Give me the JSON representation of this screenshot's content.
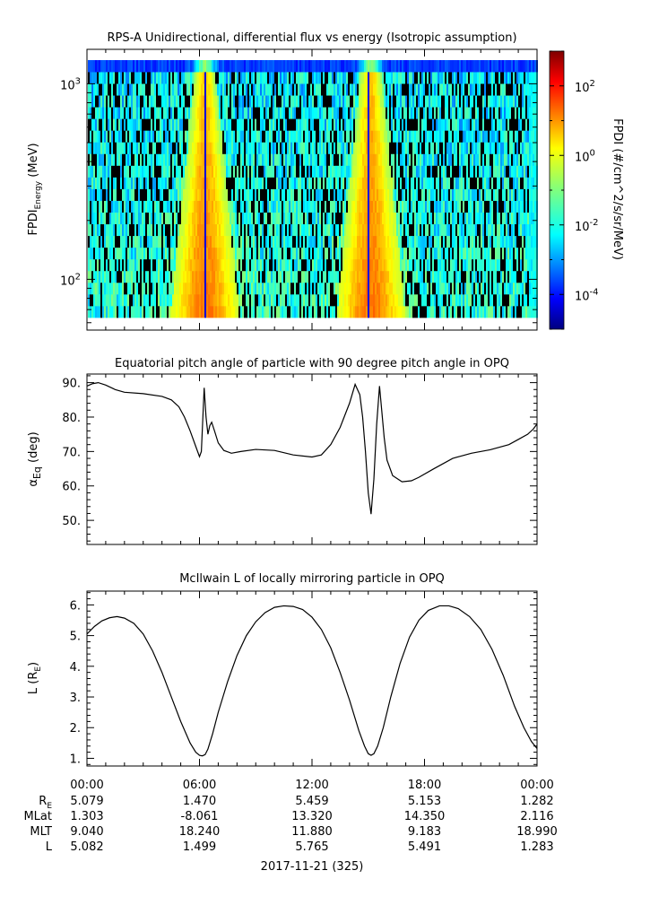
{
  "chart_data": [
    {
      "type": "heatmap",
      "title": "RPS-A Unidirectional, differential flux vs energy (Isotropic assumption)",
      "ylabel": "FPDI",
      "ylabel_sub": "Energy",
      "ylabel_unit": "(MeV)",
      "yscale": "log",
      "ylim": [
        55,
        1500
      ],
      "ytick_values": [
        100,
        1000
      ],
      "ytick_labels": [
        {
          "base": "10",
          "exp": "2"
        },
        {
          "base": "10",
          "exp": "3"
        }
      ],
      "energy_bins": 22,
      "xlim_hours": [
        0,
        24
      ],
      "peak_times_hours": [
        6.25,
        15.1
      ],
      "colorbar": {
        "label": "FPDI (#/cm^2/s/sr/MeV)",
        "scale": "log",
        "range": [
          1e-05,
          1000.0
        ],
        "tick_values": [
          100,
          1,
          0.01,
          0.0001
        ],
        "tick_labels": [
          {
            "base": "10",
            "exp": "2"
          },
          {
            "base": "10",
            "exp": "0"
          },
          {
            "base": "10",
            "exp": "-2"
          },
          {
            "base": "10",
            "exp": "-4"
          }
        ],
        "colors": [
          "#00007f",
          "#0000ff",
          "#007fff",
          "#00ffff",
          "#7fff7f",
          "#ffff00",
          "#ff7f00",
          "#ff0000",
          "#7f0000"
        ]
      }
    },
    {
      "type": "line",
      "title": "Equatorial pitch angle of particle with 90 degree pitch angle in OPQ",
      "ylabel": "α",
      "ylabel_sub": "Eq",
      "ylabel_unit": "(deg)",
      "ylim": [
        43,
        92.5
      ],
      "ytick_values": [
        50,
        60,
        70,
        80,
        90
      ],
      "ytick_labels": [
        "50.",
        "60.",
        "70.",
        "80.",
        "90."
      ],
      "xlim_hours": [
        0,
        24
      ],
      "x": [
        0,
        0.3,
        0.6,
        1.0,
        1.5,
        2.0,
        3.0,
        4.0,
        4.5,
        4.9,
        5.2,
        5.5,
        5.8,
        6.0,
        6.1,
        6.25,
        6.35,
        6.45,
        6.55,
        6.65,
        6.8,
        7.0,
        7.3,
        7.7,
        8.2,
        9.0,
        10.0,
        11.0,
        12.0,
        12.5,
        13.0,
        13.5,
        14.0,
        14.3,
        14.55,
        14.7,
        14.85,
        15.0,
        15.15,
        15.3,
        15.45,
        15.6,
        15.75,
        15.85,
        16.0,
        16.3,
        16.8,
        17.3,
        17.7,
        18.5,
        19.5,
        20.5,
        21.5,
        22.5,
        23.0,
        23.5,
        23.8,
        24.0
      ],
      "y": [
        89.0,
        89.7,
        90.0,
        89.3,
        88.0,
        87.2,
        86.8,
        86.0,
        85.0,
        83.0,
        80.0,
        76.0,
        71.5,
        68.5,
        70.0,
        88.5,
        80.0,
        75.0,
        77.5,
        78.5,
        76.0,
        72.5,
        70.3,
        69.5,
        70.0,
        70.6,
        70.3,
        69.0,
        68.4,
        69.0,
        72.0,
        77.0,
        84.0,
        89.5,
        86.5,
        80.0,
        70.0,
        58.0,
        51.8,
        62.0,
        78.0,
        89.0,
        80.0,
        74.0,
        67.5,
        63.0,
        61.2,
        61.5,
        62.5,
        65.0,
        68.0,
        69.5,
        70.5,
        72.0,
        73.5,
        75.0,
        76.5,
        78.0
      ]
    },
    {
      "type": "line",
      "title": "McIlwain L of locally mirroring particle in OPQ",
      "ylabel": "L",
      "ylabel_unit": "(R",
      "ylabel_unit_sub": "E",
      "ylabel_unit_close": ")",
      "ylim": [
        0.75,
        6.45
      ],
      "ytick_values": [
        1,
        2,
        3,
        4,
        5,
        6
      ],
      "ytick_labels": [
        "1.",
        "2.",
        "3.",
        "4.",
        "5.",
        "6."
      ],
      "xlim_hours": [
        0,
        24
      ],
      "x": [
        0,
        0.4,
        0.8,
        1.2,
        1.6,
        2.0,
        2.5,
        3.0,
        3.5,
        4.0,
        4.5,
        5.0,
        5.5,
        5.8,
        6.0,
        6.15,
        6.3,
        6.45,
        6.7,
        7.0,
        7.5,
        8.0,
        8.5,
        9.0,
        9.5,
        10.0,
        10.5,
        11.0,
        11.5,
        12.0,
        12.5,
        13.0,
        13.5,
        14.0,
        14.5,
        14.8,
        15.0,
        15.15,
        15.3,
        15.5,
        15.8,
        16.2,
        16.7,
        17.2,
        17.7,
        18.2,
        18.8,
        19.3,
        19.8,
        20.4,
        21.0,
        21.6,
        22.2,
        22.8,
        23.3,
        23.7,
        24.0
      ],
      "y": [
        5.05,
        5.3,
        5.48,
        5.58,
        5.62,
        5.57,
        5.4,
        5.05,
        4.5,
        3.8,
        3.0,
        2.2,
        1.5,
        1.2,
        1.1,
        1.08,
        1.12,
        1.3,
        1.8,
        2.5,
        3.5,
        4.35,
        5.0,
        5.45,
        5.75,
        5.92,
        5.97,
        5.95,
        5.85,
        5.6,
        5.2,
        4.6,
        3.8,
        2.9,
        1.9,
        1.4,
        1.15,
        1.1,
        1.15,
        1.4,
        2.0,
        3.0,
        4.1,
        4.95,
        5.5,
        5.82,
        5.97,
        5.97,
        5.88,
        5.62,
        5.2,
        4.55,
        3.7,
        2.7,
        2.0,
        1.55,
        1.32
      ]
    }
  ],
  "x_axis": {
    "tick_labels": [
      "00:00",
      "06:00",
      "12:00",
      "18:00",
      "00:00"
    ],
    "tick_hours": [
      0,
      6,
      12,
      18,
      24
    ],
    "date_label": "2017-11-21 (325)"
  },
  "ephemeris": {
    "rows": [
      {
        "label": "R",
        "label_sub": "E",
        "values": [
          "5.079",
          "1.470",
          "5.459",
          "5.153",
          "1.282"
        ]
      },
      {
        "label": "MLat",
        "label_sub": "",
        "values": [
          "1.303",
          "-8.061",
          "13.320",
          "14.350",
          "2.116"
        ]
      },
      {
        "label": "MLT",
        "label_sub": "",
        "values": [
          "9.040",
          "18.240",
          "11.880",
          "9.183",
          "18.990"
        ]
      },
      {
        "label": "L",
        "label_sub": "",
        "values": [
          "5.082",
          "1.499",
          "5.765",
          "5.491",
          "1.283"
        ]
      }
    ]
  }
}
